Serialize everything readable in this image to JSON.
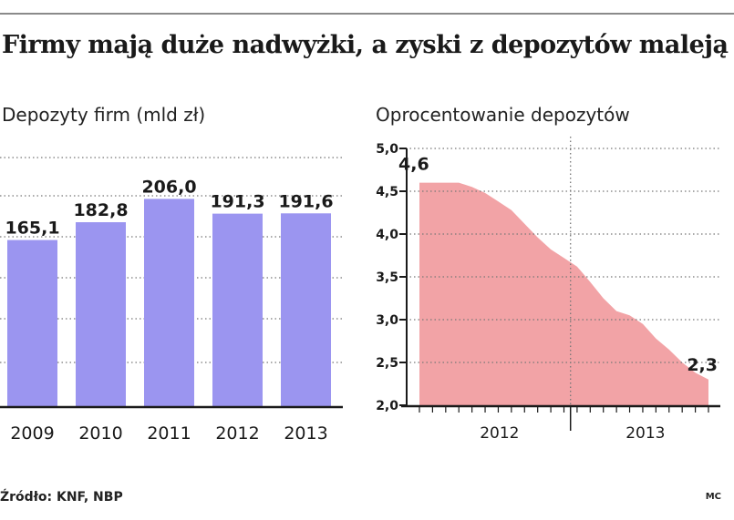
{
  "headline": "Firmy mają duże nadwyżki, a zyski z depozytów maleją",
  "source": "Źródło: KNF, NBP",
  "credit": "MC",
  "colors": {
    "bar": "#9b95f0",
    "area": "#f2a3a6",
    "grid": "#777777"
  },
  "chart_data": [
    {
      "type": "bar",
      "title": "Depozyty firm (mld zł)",
      "categories": [
        "2009",
        "2010",
        "2011",
        "2012",
        "2013"
      ],
      "values": [
        165.1,
        182.8,
        206.0,
        191.3,
        191.6
      ],
      "value_labels": [
        "165,1",
        "182,8",
        "206,0",
        "191,3",
        "191,6"
      ],
      "grid": true
    },
    {
      "type": "area",
      "title": "Oprocentowanie depozytów",
      "ylim": [
        2.0,
        5.0
      ],
      "yticks": [
        2.0,
        2.5,
        3.0,
        3.5,
        4.0,
        4.5,
        5.0
      ],
      "ytick_labels": [
        "2,0",
        "2,5",
        "3,0",
        "3,5",
        "4,0",
        "4,5",
        "5,0"
      ],
      "x_groups": [
        "2012",
        "2013"
      ],
      "x_months": [
        "2012-01",
        "2012-02",
        "2012-03",
        "2012-04",
        "2012-05",
        "2012-06",
        "2012-07",
        "2012-08",
        "2012-09",
        "2012-10",
        "2012-11",
        "2012-12",
        "2013-01",
        "2013-02",
        "2013-03",
        "2013-04",
        "2013-05",
        "2013-06",
        "2013-07",
        "2013-08",
        "2013-09",
        "2013-10",
        "2013-11"
      ],
      "values": [
        4.6,
        4.6,
        4.6,
        4.6,
        4.55,
        4.48,
        4.38,
        4.28,
        4.12,
        3.96,
        3.82,
        3.72,
        3.62,
        3.44,
        3.25,
        3.1,
        3.05,
        2.95,
        2.78,
        2.65,
        2.5,
        2.38,
        2.3
      ],
      "annotations": [
        {
          "label": "4,6",
          "x": "2012-01",
          "value": 4.6
        },
        {
          "label": "2,3",
          "x": "2013-11",
          "value": 2.3
        }
      ],
      "grid": true
    }
  ]
}
